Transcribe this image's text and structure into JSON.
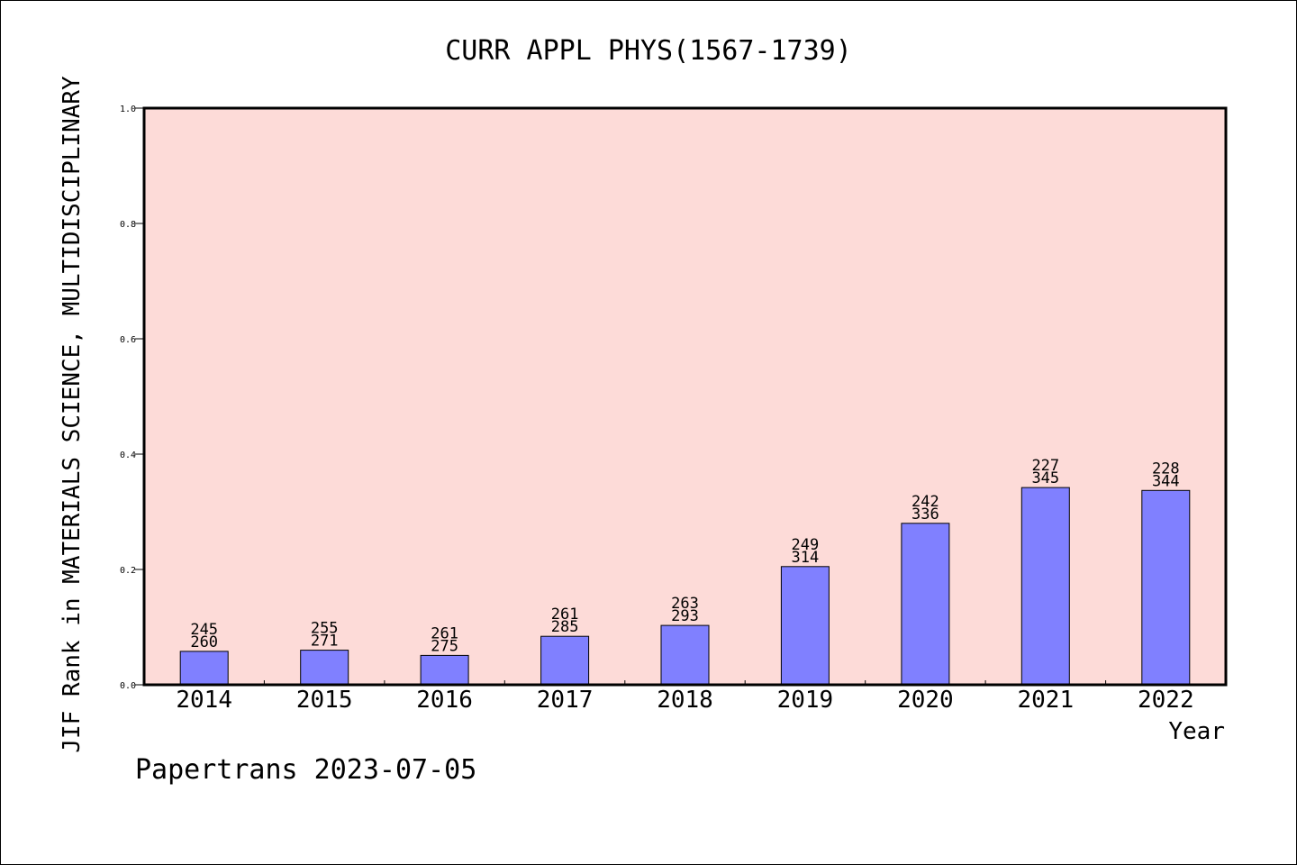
{
  "chart_data": {
    "type": "bar",
    "title": "CURR APPL PHYS(1567-1739)",
    "xlabel": "Year",
    "ylabel": "JIF Rank in MATERIALS SCIENCE, MULTIDISCIPLINARY",
    "ylim": [
      0,
      1.0
    ],
    "yticks": [
      "0.0",
      "0.2",
      "0.4",
      "0.6",
      "0.8",
      "1.0"
    ],
    "ytick_values": [
      0,
      0.2,
      0.4,
      0.6,
      0.8,
      1.0
    ],
    "categories": [
      "2014",
      "2015",
      "2016",
      "2017",
      "2018",
      "2019",
      "2020",
      "2021",
      "2022"
    ],
    "values": [
      0.058,
      0.06,
      0.051,
      0.084,
      0.103,
      0.205,
      0.28,
      0.342,
      0.337
    ],
    "rank_labels": [
      "245",
      "255",
      "261",
      "261",
      "263",
      "249",
      "242",
      "227",
      "228"
    ],
    "total_labels": [
      "260",
      "271",
      "275",
      "285",
      "293",
      "314",
      "336",
      "345",
      "344"
    ],
    "grid": false,
    "bar_color": "#8080ff",
    "plot_background": "#fddbd8",
    "footer": "Papertrans 2023-07-05"
  }
}
